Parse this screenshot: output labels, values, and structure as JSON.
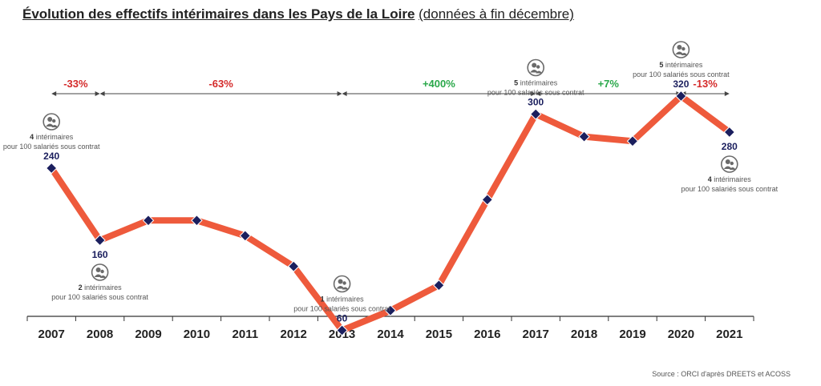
{
  "title": "Évolution des effectifs intérimaires dans les Pays de la Loire",
  "subtitle": "(données à fin décembre)",
  "source": "Source : ORCI d'après DREETS et ACOSS",
  "colors": {
    "line": "#ee5a3c",
    "marker": "#1b1f5e",
    "negative": "#d42a2a",
    "positive": "#2aa84a",
    "axis": "#333333",
    "note": "#555555",
    "icon": "#6a6a6a"
  },
  "chart_data": {
    "type": "line",
    "categories": [
      "2007",
      "2008",
      "2009",
      "2010",
      "2011",
      "2012",
      "2013",
      "2014",
      "2015",
      "2016",
      "2017",
      "2018",
      "2019",
      "2020",
      "2021"
    ],
    "series": [
      {
        "values": [
          240,
          160,
          182,
          182,
          165,
          131,
          60,
          82,
          110,
          205,
          300,
          275,
          270,
          320,
          280
        ]
      }
    ],
    "data_labels": [
      {
        "index": 0,
        "text": "240",
        "position": "above"
      },
      {
        "index": 1,
        "text": "160",
        "position": "below"
      },
      {
        "index": 6,
        "text": "60",
        "position": "above"
      },
      {
        "index": 10,
        "text": "300",
        "position": "above"
      },
      {
        "index": 13,
        "text": "320",
        "position": "above"
      },
      {
        "index": 14,
        "text": "280",
        "position": "below"
      }
    ],
    "annotations": [
      {
        "index": 0,
        "bold": "4",
        "line1": " intérimaires",
        "line2": "pour 100 salariés sous contrat",
        "position": "above"
      },
      {
        "index": 1,
        "bold": "2",
        "line1": " intérimaires",
        "line2": "pour 100 salariés sous contrat",
        "position": "below"
      },
      {
        "index": 6,
        "bold": "1",
        "line1": " intérimaires",
        "line2": "pour 100 salariés sous contrat",
        "position": "above"
      },
      {
        "index": 10,
        "bold": "5",
        "line1": " intérimaires",
        "line2": "pour 100 salariés sous contrat",
        "position": "above"
      },
      {
        "index": 13,
        "bold": "5",
        "line1": " intérimaires",
        "line2": "pour 100 salariés sous contrat",
        "position": "above"
      },
      {
        "index": 14,
        "bold": "4",
        "line1": " intérimaires",
        "line2": "pour 100 salariés sous contrat",
        "position": "below"
      }
    ],
    "periods": [
      {
        "from": 0,
        "to": 1,
        "label": "-33%",
        "tone": "negative"
      },
      {
        "from": 1,
        "to": 6,
        "label": "-63%",
        "tone": "negative"
      },
      {
        "from": 6,
        "to": 10,
        "label": "+400%",
        "tone": "positive"
      },
      {
        "from": 10,
        "to": 13,
        "label": "+7%",
        "tone": "positive"
      },
      {
        "from": 13,
        "to": 14,
        "label": "-13%",
        "tone": "negative"
      }
    ],
    "ylim": [
      0,
      400
    ],
    "grid": false,
    "icon": "people-icon"
  }
}
